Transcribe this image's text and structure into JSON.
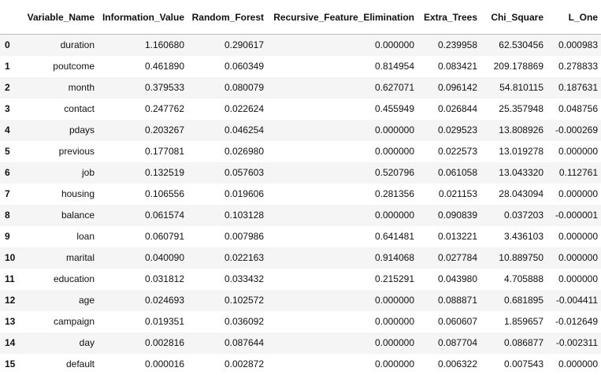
{
  "table": {
    "index_header": "",
    "columns": [
      "Variable_Name",
      "Information_Value",
      "Random_Forest",
      "Recursive_Feature_Elimination",
      "Extra_Trees",
      "Chi_Square",
      "L_One"
    ],
    "rows": [
      {
        "index": "0",
        "cells": [
          "duration",
          "1.160680",
          "0.290617",
          "0.000000",
          "0.239958",
          "62.530456",
          "0.000983"
        ]
      },
      {
        "index": "1",
        "cells": [
          "poutcome",
          "0.461890",
          "0.060349",
          "0.814954",
          "0.083421",
          "209.178869",
          "0.278833"
        ]
      },
      {
        "index": "2",
        "cells": [
          "month",
          "0.379533",
          "0.080079",
          "0.627071",
          "0.096142",
          "54.810115",
          "0.187631"
        ]
      },
      {
        "index": "3",
        "cells": [
          "contact",
          "0.247762",
          "0.022624",
          "0.455949",
          "0.026844",
          "25.357948",
          "0.048756"
        ]
      },
      {
        "index": "4",
        "cells": [
          "pdays",
          "0.203267",
          "0.046254",
          "0.000000",
          "0.029523",
          "13.808926",
          "-0.000269"
        ]
      },
      {
        "index": "5",
        "cells": [
          "previous",
          "0.177081",
          "0.026980",
          "0.000000",
          "0.022573",
          "13.019278",
          "0.000000"
        ]
      },
      {
        "index": "6",
        "cells": [
          "job",
          "0.132519",
          "0.057603",
          "0.520796",
          "0.061058",
          "13.043320",
          "0.112761"
        ]
      },
      {
        "index": "7",
        "cells": [
          "housing",
          "0.106556",
          "0.019606",
          "0.281356",
          "0.021153",
          "28.043094",
          "0.000000"
        ]
      },
      {
        "index": "8",
        "cells": [
          "balance",
          "0.061574",
          "0.103128",
          "0.000000",
          "0.090839",
          "0.037203",
          "-0.000001"
        ]
      },
      {
        "index": "9",
        "cells": [
          "loan",
          "0.060791",
          "0.007986",
          "0.641481",
          "0.013221",
          "3.436103",
          "0.000000"
        ]
      },
      {
        "index": "10",
        "cells": [
          "marital",
          "0.040090",
          "0.022163",
          "0.914068",
          "0.027784",
          "10.889750",
          "0.000000"
        ]
      },
      {
        "index": "11",
        "cells": [
          "education",
          "0.031812",
          "0.033432",
          "0.215291",
          "0.043980",
          "4.705888",
          "0.000000"
        ]
      },
      {
        "index": "12",
        "cells": [
          "age",
          "0.024693",
          "0.102572",
          "0.000000",
          "0.088871",
          "0.681895",
          "-0.004411"
        ]
      },
      {
        "index": "13",
        "cells": [
          "campaign",
          "0.019351",
          "0.036092",
          "0.000000",
          "0.060607",
          "1.859657",
          "-0.012649"
        ]
      },
      {
        "index": "14",
        "cells": [
          "day",
          "0.002816",
          "0.087644",
          "0.000000",
          "0.087704",
          "0.086877",
          "-0.002311"
        ]
      },
      {
        "index": "15",
        "cells": [
          "default",
          "0.000016",
          "0.002872",
          "0.000000",
          "0.006322",
          "0.007543",
          "0.000000"
        ]
      }
    ]
  }
}
